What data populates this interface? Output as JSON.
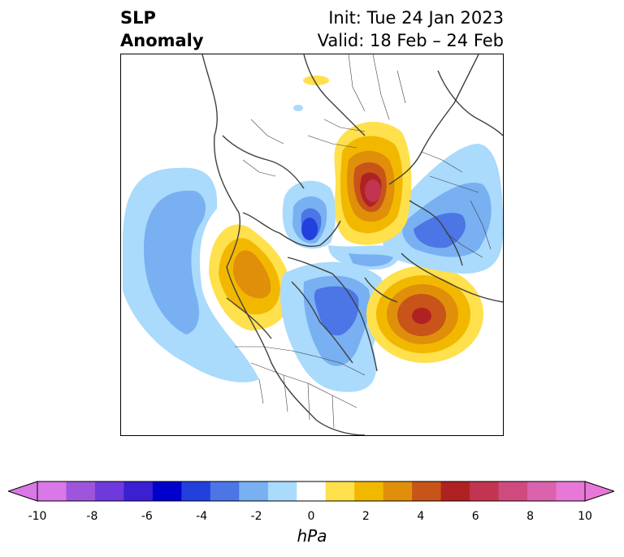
{
  "title": {
    "line1": "SLP",
    "line2": "Anomaly"
  },
  "info": {
    "init": "Init: Tue 24 Jan 2023",
    "valid": "Valid: 18 Feb – 24 Feb"
  },
  "colorbar": {
    "unit": "hPa",
    "ticks": [
      "-10",
      "-8",
      "-6",
      "-4",
      "-2",
      "0",
      "2",
      "4",
      "6",
      "8",
      "10"
    ],
    "levels": [
      -10,
      -9,
      -8,
      -7,
      -6,
      -5,
      -4,
      -3,
      -2,
      -1,
      1,
      2,
      3,
      4,
      5,
      6,
      7,
      8,
      9,
      10
    ],
    "colors": [
      "#d978e6",
      "#9e55dd",
      "#6e3adb",
      "#3b1fd2",
      "#0000cc",
      "#2240dc",
      "#4c75e6",
      "#78b0f2",
      "#aadafc",
      "#ffffff",
      "#ffe04d",
      "#f2b800",
      "#e08f0a",
      "#c8541a",
      "#b02222",
      "#c23550",
      "#cf4b7f",
      "#db62ad",
      "#e878d8"
    ],
    "extend_low_color": "#d978e6",
    "extend_high_color": "#e878d8"
  },
  "map": {
    "projection": "polar-stereographic-north",
    "field": "sea-level-pressure-anomaly",
    "features": [
      {
        "name": "pacific-negative",
        "sign": "negative",
        "peak_hpa": -3
      },
      {
        "name": "west-canada-positive",
        "sign": "positive",
        "peak_hpa": 4
      },
      {
        "name": "eastern-north-america-negative",
        "sign": "negative",
        "peak_hpa": -4
      },
      {
        "name": "north-atlantic-positive",
        "sign": "positive",
        "peak_hpa": 6
      },
      {
        "name": "russia-positive",
        "sign": "positive",
        "peak_hpa": 7
      },
      {
        "name": "central-asia-negative",
        "sign": "negative",
        "peak_hpa": -5
      },
      {
        "name": "europe-negative",
        "sign": "negative",
        "peak_hpa": -4
      },
      {
        "name": "siberia-positive",
        "sign": "positive",
        "peak_hpa": 2
      }
    ]
  }
}
